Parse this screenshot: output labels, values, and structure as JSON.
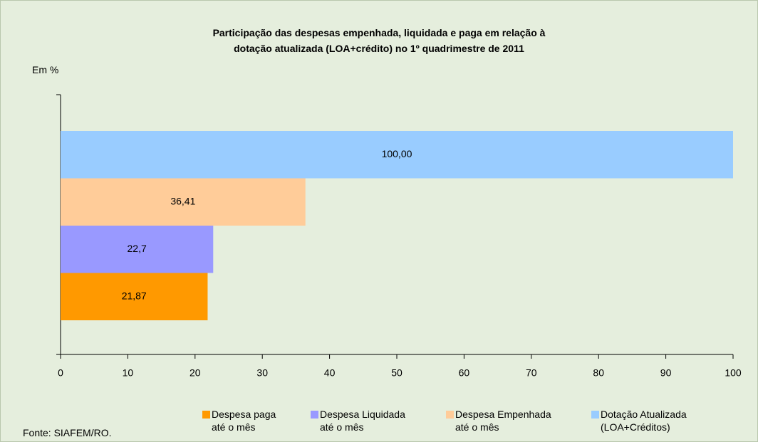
{
  "chart_data": {
    "type": "bar",
    "orientation": "horizontal",
    "title": "Participação das despesas empenhada, liquidada e paga em relação à\ndotação atualizada (LOA+crédito) no 1º quadrimestre de 2011",
    "y_label": "Em %",
    "source": "Fonte: SIAFEM/RO.",
    "series": [
      {
        "name": "Despesa paga\naté o mês",
        "color": "#ff9900",
        "values": [
          21.87
        ],
        "value_labels": [
          "21,87"
        ]
      },
      {
        "name": "Despesa Liquidada\naté o mês",
        "color": "#9999ff",
        "values": [
          22.7
        ],
        "value_labels": [
          "22,7"
        ]
      },
      {
        "name": "Despesa Empenhada\naté o mês",
        "color": "#ffcc99",
        "values": [
          36.41
        ],
        "value_labels": [
          "36,41"
        ]
      },
      {
        "name": "Dotação Atualizada\n(LOA+Créditos)",
        "color": "#99ccff",
        "values": [
          100
        ],
        "value_labels": [
          "100,00"
        ]
      }
    ],
    "xlim": [
      0,
      100
    ],
    "xticks": [
      0,
      10,
      20,
      30,
      40,
      50,
      60,
      70,
      80,
      90,
      100
    ],
    "grid": false
  }
}
